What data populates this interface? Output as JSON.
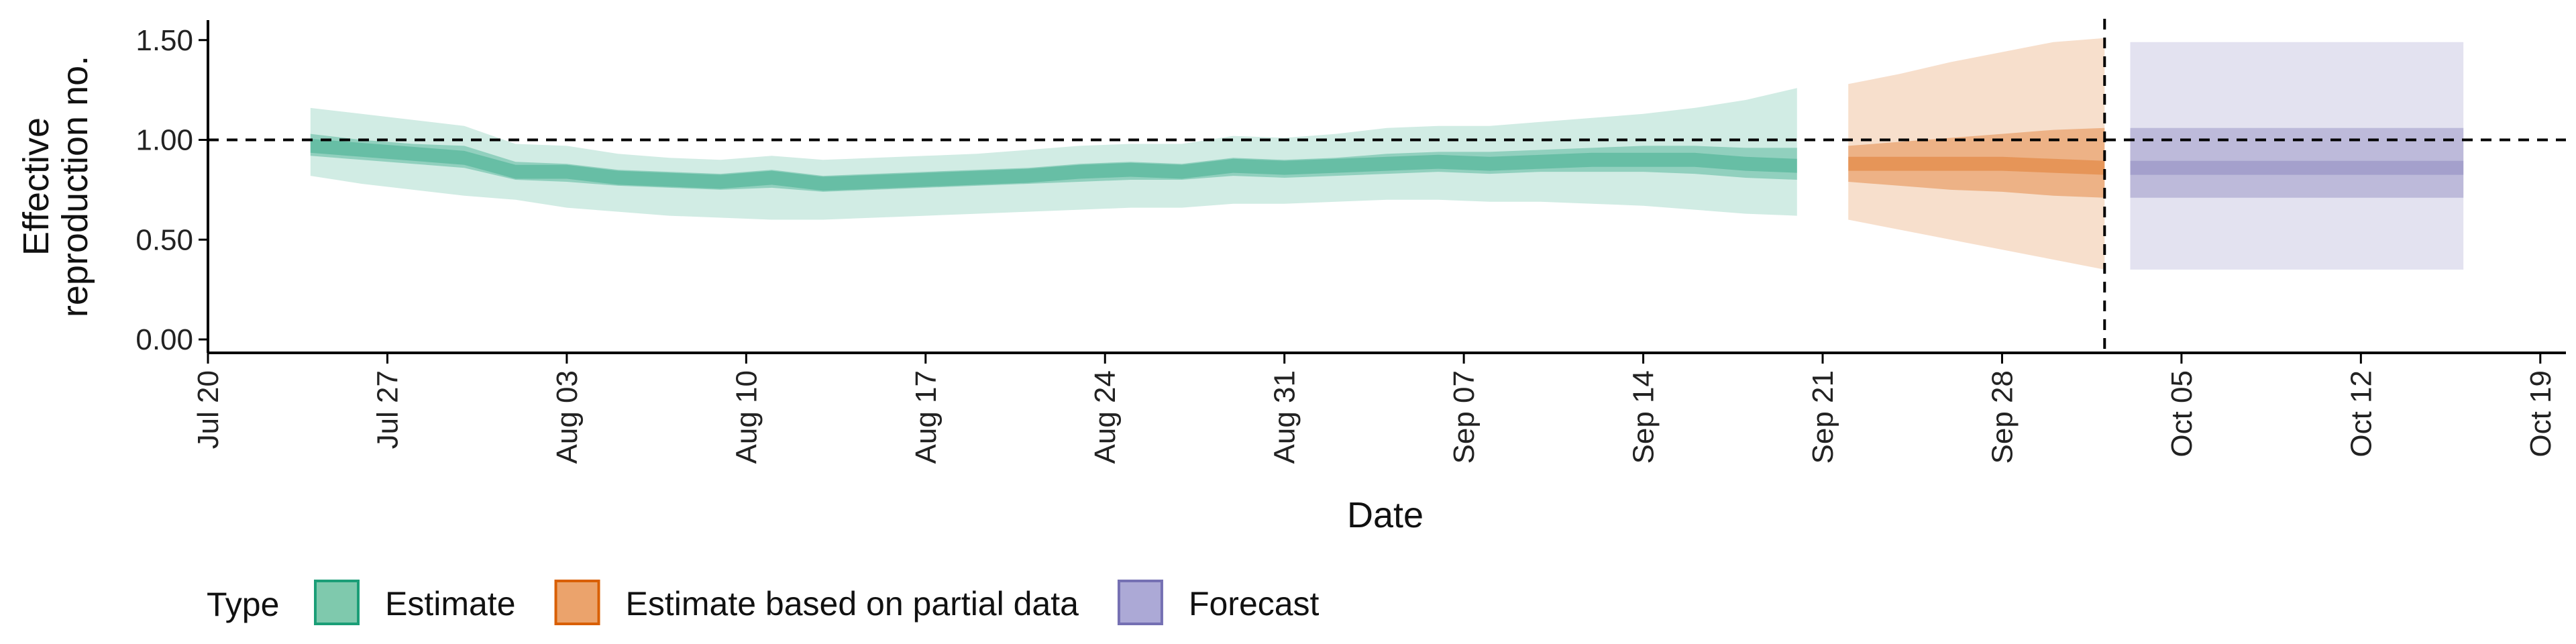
{
  "chart_data": {
    "type": "area",
    "xlabel": "Date",
    "ylabel_lines": [
      "Effective",
      "reproduction no."
    ],
    "ylim": [
      0,
      1.6
    ],
    "yticks": [
      0,
      0.5,
      1.0,
      1.5
    ],
    "ytick_labels": [
      "0.00",
      "0.50",
      "1.00",
      "1.50"
    ],
    "xlim": [
      "2020-07-20",
      "2020-10-20"
    ],
    "xticks": [
      "2020-07-20",
      "2020-07-27",
      "2020-08-03",
      "2020-08-10",
      "2020-08-17",
      "2020-08-24",
      "2020-08-31",
      "2020-09-07",
      "2020-09-14",
      "2020-09-21",
      "2020-09-28",
      "2020-10-05",
      "2020-10-12",
      "2020-10-19"
    ],
    "xtick_labels": [
      "Jul 20",
      "Jul 27",
      "Aug 03",
      "Aug 10",
      "Aug 17",
      "Aug 24",
      "Aug 31",
      "Sep 07",
      "Sep 14",
      "Sep 21",
      "Sep 28",
      "Oct 05",
      "Oct 12",
      "Oct 19"
    ],
    "hline": 1.0,
    "vline": "2020-10-02",
    "legend": {
      "title": "Type",
      "position": "bottom",
      "entries": [
        {
          "label": "Estimate",
          "fill": "#7fc9ad",
          "stroke": "#1b9e77"
        },
        {
          "label": "Estimate based on partial data",
          "fill": "#eba36c",
          "stroke": "#d95f02"
        },
        {
          "label": "Forecast",
          "fill": "#aca9d6",
          "stroke": "#7570b3"
        }
      ]
    },
    "series": [
      {
        "name": "Estimate",
        "color": "#1b9e77",
        "points": [
          {
            "date": "2020-07-24",
            "outer": [
              0.82,
              1.16
            ],
            "inner": [
              0.92,
              1.03
            ],
            "median": 0.97
          },
          {
            "date": "2020-07-26",
            "outer": [
              0.78,
              1.13
            ],
            "inner": [
              0.9,
              1.0
            ],
            "median": 0.95
          },
          {
            "date": "2020-07-28",
            "outer": [
              0.75,
              1.1
            ],
            "inner": [
              0.88,
              0.98
            ],
            "median": 0.93
          },
          {
            "date": "2020-07-30",
            "outer": [
              0.72,
              1.07
            ],
            "inner": [
              0.86,
              0.97
            ],
            "median": 0.91
          },
          {
            "date": "2020-08-01",
            "outer": [
              0.7,
              0.98
            ],
            "inner": [
              0.8,
              0.89
            ],
            "median": 0.84
          },
          {
            "date": "2020-08-03",
            "outer": [
              0.66,
              0.97
            ],
            "inner": [
              0.79,
              0.88
            ],
            "median": 0.84
          },
          {
            "date": "2020-08-05",
            "outer": [
              0.64,
              0.93
            ],
            "inner": [
              0.77,
              0.85
            ],
            "median": 0.81
          },
          {
            "date": "2020-08-07",
            "outer": [
              0.62,
              0.91
            ],
            "inner": [
              0.76,
              0.84
            ],
            "median": 0.8
          },
          {
            "date": "2020-08-09",
            "outer": [
              0.61,
              0.9
            ],
            "inner": [
              0.75,
              0.83
            ],
            "median": 0.79
          },
          {
            "date": "2020-08-11",
            "outer": [
              0.6,
              0.92
            ],
            "inner": [
              0.76,
              0.85
            ],
            "median": 0.81
          },
          {
            "date": "2020-08-13",
            "outer": [
              0.6,
              0.9
            ],
            "inner": [
              0.74,
              0.82
            ],
            "median": 0.78
          },
          {
            "date": "2020-08-15",
            "outer": [
              0.61,
              0.91
            ],
            "inner": [
              0.75,
              0.83
            ],
            "median": 0.79
          },
          {
            "date": "2020-08-17",
            "outer": [
              0.62,
              0.92
            ],
            "inner": [
              0.76,
              0.84
            ],
            "median": 0.8
          },
          {
            "date": "2020-08-19",
            "outer": [
              0.63,
              0.93
            ],
            "inner": [
              0.77,
              0.85
            ],
            "median": 0.81
          },
          {
            "date": "2020-08-21",
            "outer": [
              0.64,
              0.95
            ],
            "inner": [
              0.78,
              0.86
            ],
            "median": 0.82
          },
          {
            "date": "2020-08-23",
            "outer": [
              0.65,
              0.97
            ],
            "inner": [
              0.79,
              0.88
            ],
            "median": 0.84
          },
          {
            "date": "2020-08-25",
            "outer": [
              0.66,
              0.98
            ],
            "inner": [
              0.8,
              0.89
            ],
            "median": 0.85
          },
          {
            "date": "2020-08-27",
            "outer": [
              0.66,
              0.98
            ],
            "inner": [
              0.8,
              0.88
            ],
            "median": 0.84
          },
          {
            "date": "2020-08-29",
            "outer": [
              0.68,
              1.02
            ],
            "inner": [
              0.82,
              0.91
            ],
            "median": 0.87
          },
          {
            "date": "2020-08-31",
            "outer": [
              0.68,
              1.01
            ],
            "inner": [
              0.81,
              0.9
            ],
            "median": 0.86
          },
          {
            "date": "2020-09-02",
            "outer": [
              0.69,
              1.03
            ],
            "inner": [
              0.82,
              0.91
            ],
            "median": 0.87
          },
          {
            "date": "2020-09-04",
            "outer": [
              0.7,
              1.06
            ],
            "inner": [
              0.83,
              0.93
            ],
            "median": 0.88
          },
          {
            "date": "2020-09-06",
            "outer": [
              0.7,
              1.07
            ],
            "inner": [
              0.84,
              0.94
            ],
            "median": 0.89
          },
          {
            "date": "2020-09-08",
            "outer": [
              0.69,
              1.07
            ],
            "inner": [
              0.83,
              0.94
            ],
            "median": 0.88
          },
          {
            "date": "2020-09-10",
            "outer": [
              0.69,
              1.09
            ],
            "inner": [
              0.84,
              0.95
            ],
            "median": 0.89
          },
          {
            "date": "2020-09-12",
            "outer": [
              0.68,
              1.11
            ],
            "inner": [
              0.84,
              0.96
            ],
            "median": 0.9
          },
          {
            "date": "2020-09-14",
            "outer": [
              0.67,
              1.13
            ],
            "inner": [
              0.84,
              0.97
            ],
            "median": 0.9
          },
          {
            "date": "2020-09-16",
            "outer": [
              0.65,
              1.16
            ],
            "inner": [
              0.83,
              0.97
            ],
            "median": 0.9
          },
          {
            "date": "2020-09-18",
            "outer": [
              0.63,
              1.2
            ],
            "inner": [
              0.81,
              0.96
            ],
            "median": 0.88
          },
          {
            "date": "2020-09-20",
            "outer": [
              0.62,
              1.26
            ],
            "inner": [
              0.8,
              0.96
            ],
            "median": 0.87
          }
        ]
      },
      {
        "name": "Estimate based on partial data",
        "color": "#d95f02",
        "points": [
          {
            "date": "2020-09-22",
            "outer": [
              0.6,
              1.28
            ],
            "inner": [
              0.79,
              0.97
            ],
            "median": 0.88
          },
          {
            "date": "2020-09-24",
            "outer": [
              0.55,
              1.33
            ],
            "inner": [
              0.77,
              0.99
            ],
            "median": 0.88
          },
          {
            "date": "2020-09-26",
            "outer": [
              0.5,
              1.39
            ],
            "inner": [
              0.75,
              1.01
            ],
            "median": 0.88
          },
          {
            "date": "2020-09-28",
            "outer": [
              0.45,
              1.44
            ],
            "inner": [
              0.74,
              1.03
            ],
            "median": 0.88
          },
          {
            "date": "2020-09-30",
            "outer": [
              0.4,
              1.49
            ],
            "inner": [
              0.72,
              1.05
            ],
            "median": 0.87
          },
          {
            "date": "2020-10-02",
            "outer": [
              0.35,
              1.51
            ],
            "inner": [
              0.71,
              1.06
            ],
            "median": 0.86
          }
        ]
      },
      {
        "name": "Forecast",
        "color": "#7570b3",
        "points": [
          {
            "date": "2020-10-03",
            "outer": [
              0.35,
              1.49
            ],
            "inner": [
              0.71,
              1.06
            ],
            "median": 0.86
          },
          {
            "date": "2020-10-16",
            "outer": [
              0.35,
              1.49
            ],
            "inner": [
              0.71,
              1.06
            ],
            "median": 0.86
          }
        ]
      }
    ]
  }
}
